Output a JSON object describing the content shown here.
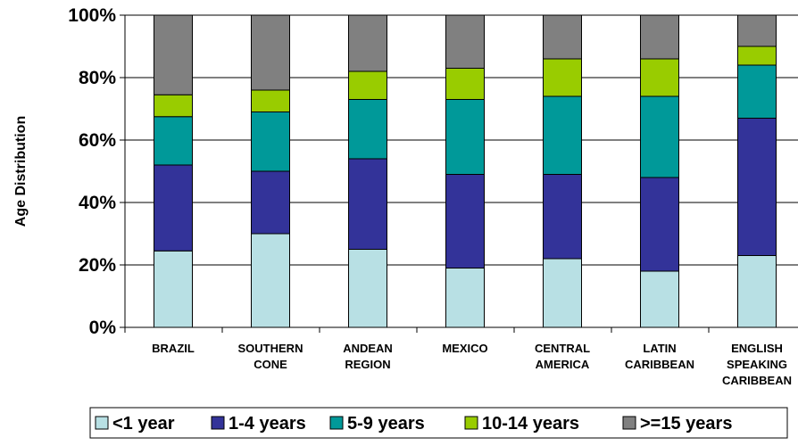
{
  "chart_data": {
    "type": "bar",
    "stacked": true,
    "ylabel": "Age Distribution",
    "ylim": [
      0,
      100
    ],
    "yticks": [
      "0%",
      "20%",
      "40%",
      "60%",
      "80%",
      "100%"
    ],
    "grid": true,
    "legend_position": "bottom",
    "categories": [
      [
        "BRAZIL"
      ],
      [
        "SOUTHERN",
        "CONE"
      ],
      [
        "ANDEAN",
        "REGION"
      ],
      [
        "MEXICO"
      ],
      [
        "CENTRAL",
        "AMERICA"
      ],
      [
        "LATIN",
        "CARIBBEAN"
      ],
      [
        "ENGLISH",
        "SPEAKING",
        "CARIBBEAN"
      ]
    ],
    "series": [
      {
        "name": "<1 year",
        "color": "#b8e0e4",
        "values": [
          24.5,
          30,
          25,
          19,
          22,
          18,
          23
        ]
      },
      {
        "name": "1-4 years",
        "color": "#333399",
        "values": [
          27.5,
          20,
          29,
          30,
          27,
          30,
          44
        ]
      },
      {
        "name": "5-9 years",
        "color": "#009999",
        "values": [
          15.5,
          19,
          19,
          24,
          25,
          26,
          17
        ]
      },
      {
        "name": "10-14 years",
        "color": "#99cc00",
        "values": [
          7,
          7,
          9,
          10,
          12,
          12,
          6
        ]
      },
      {
        "name": ">=15 years",
        "color": "#808080",
        "values": [
          25.5,
          24,
          18,
          17,
          14,
          14,
          10
        ]
      }
    ]
  }
}
